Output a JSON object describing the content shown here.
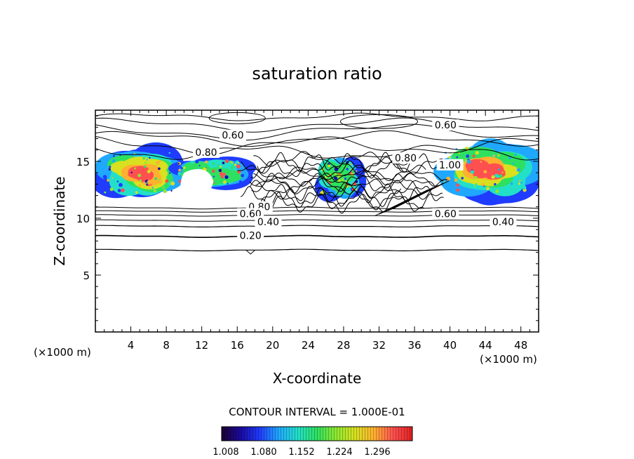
{
  "chart_data": {
    "type": "contour",
    "title": "saturation ratio",
    "xlabel": "X-coordinate",
    "ylabel": "Z-coordinate",
    "x_unit": "(×1000 m)",
    "z_unit": "(×1000 m)",
    "xlim": [
      0,
      50
    ],
    "ylim": [
      0,
      19.5
    ],
    "x_ticks": [
      4,
      8,
      12,
      16,
      20,
      24,
      28,
      32,
      36,
      40,
      44,
      48
    ],
    "y_ticks": [
      5,
      10,
      15
    ],
    "contour_interval_text": "CONTOUR INTERVAL = 1.000E-01",
    "contour_labels": [
      {
        "text": "0.60",
        "x": 15.5,
        "z": 17.3
      },
      {
        "text": "0.60",
        "x": 39.5,
        "z": 18.2
      },
      {
        "text": "0.80",
        "x": 12.5,
        "z": 15.8
      },
      {
        "text": "0.80",
        "x": 35.0,
        "z": 15.3
      },
      {
        "text": "1.00",
        "x": 40.0,
        "z": 14.7
      },
      {
        "text": "0.80",
        "x": 18.5,
        "z": 11.0
      },
      {
        "text": "0.60",
        "x": 17.5,
        "z": 10.4
      },
      {
        "text": "0.60",
        "x": 39.5,
        "z": 10.4
      },
      {
        "text": "0.40",
        "x": 19.5,
        "z": 9.7
      },
      {
        "text": "0.40",
        "x": 46.0,
        "z": 9.7
      },
      {
        "text": "0.20",
        "x": 17.5,
        "z": 8.5
      }
    ],
    "colorbar": {
      "ticks": [
        "1.008",
        "1.080",
        "1.152",
        "1.224",
        "1.296"
      ],
      "colors": [
        "#1c0030",
        "#1a0aa0",
        "#1f3cff",
        "#20a8ff",
        "#22e0c8",
        "#2ee060",
        "#8ee830",
        "#d8e020",
        "#ffb030",
        "#ff5050",
        "#e02020"
      ]
    },
    "supersaturated_regions": [
      {
        "name": "left-cloud",
        "x": [
          0,
          10
        ],
        "z": [
          11.5,
          16.5
        ]
      },
      {
        "name": "mid-cloud-1",
        "x": [
          8.5,
          17.5
        ],
        "z": [
          12.5,
          15.5
        ]
      },
      {
        "name": "mid-cloud-2",
        "x": [
          25,
          30
        ],
        "z": [
          11.5,
          15.5
        ]
      },
      {
        "name": "right-cloud",
        "x": [
          38,
          50
        ],
        "z": [
          11.5,
          17.0
        ]
      }
    ]
  }
}
